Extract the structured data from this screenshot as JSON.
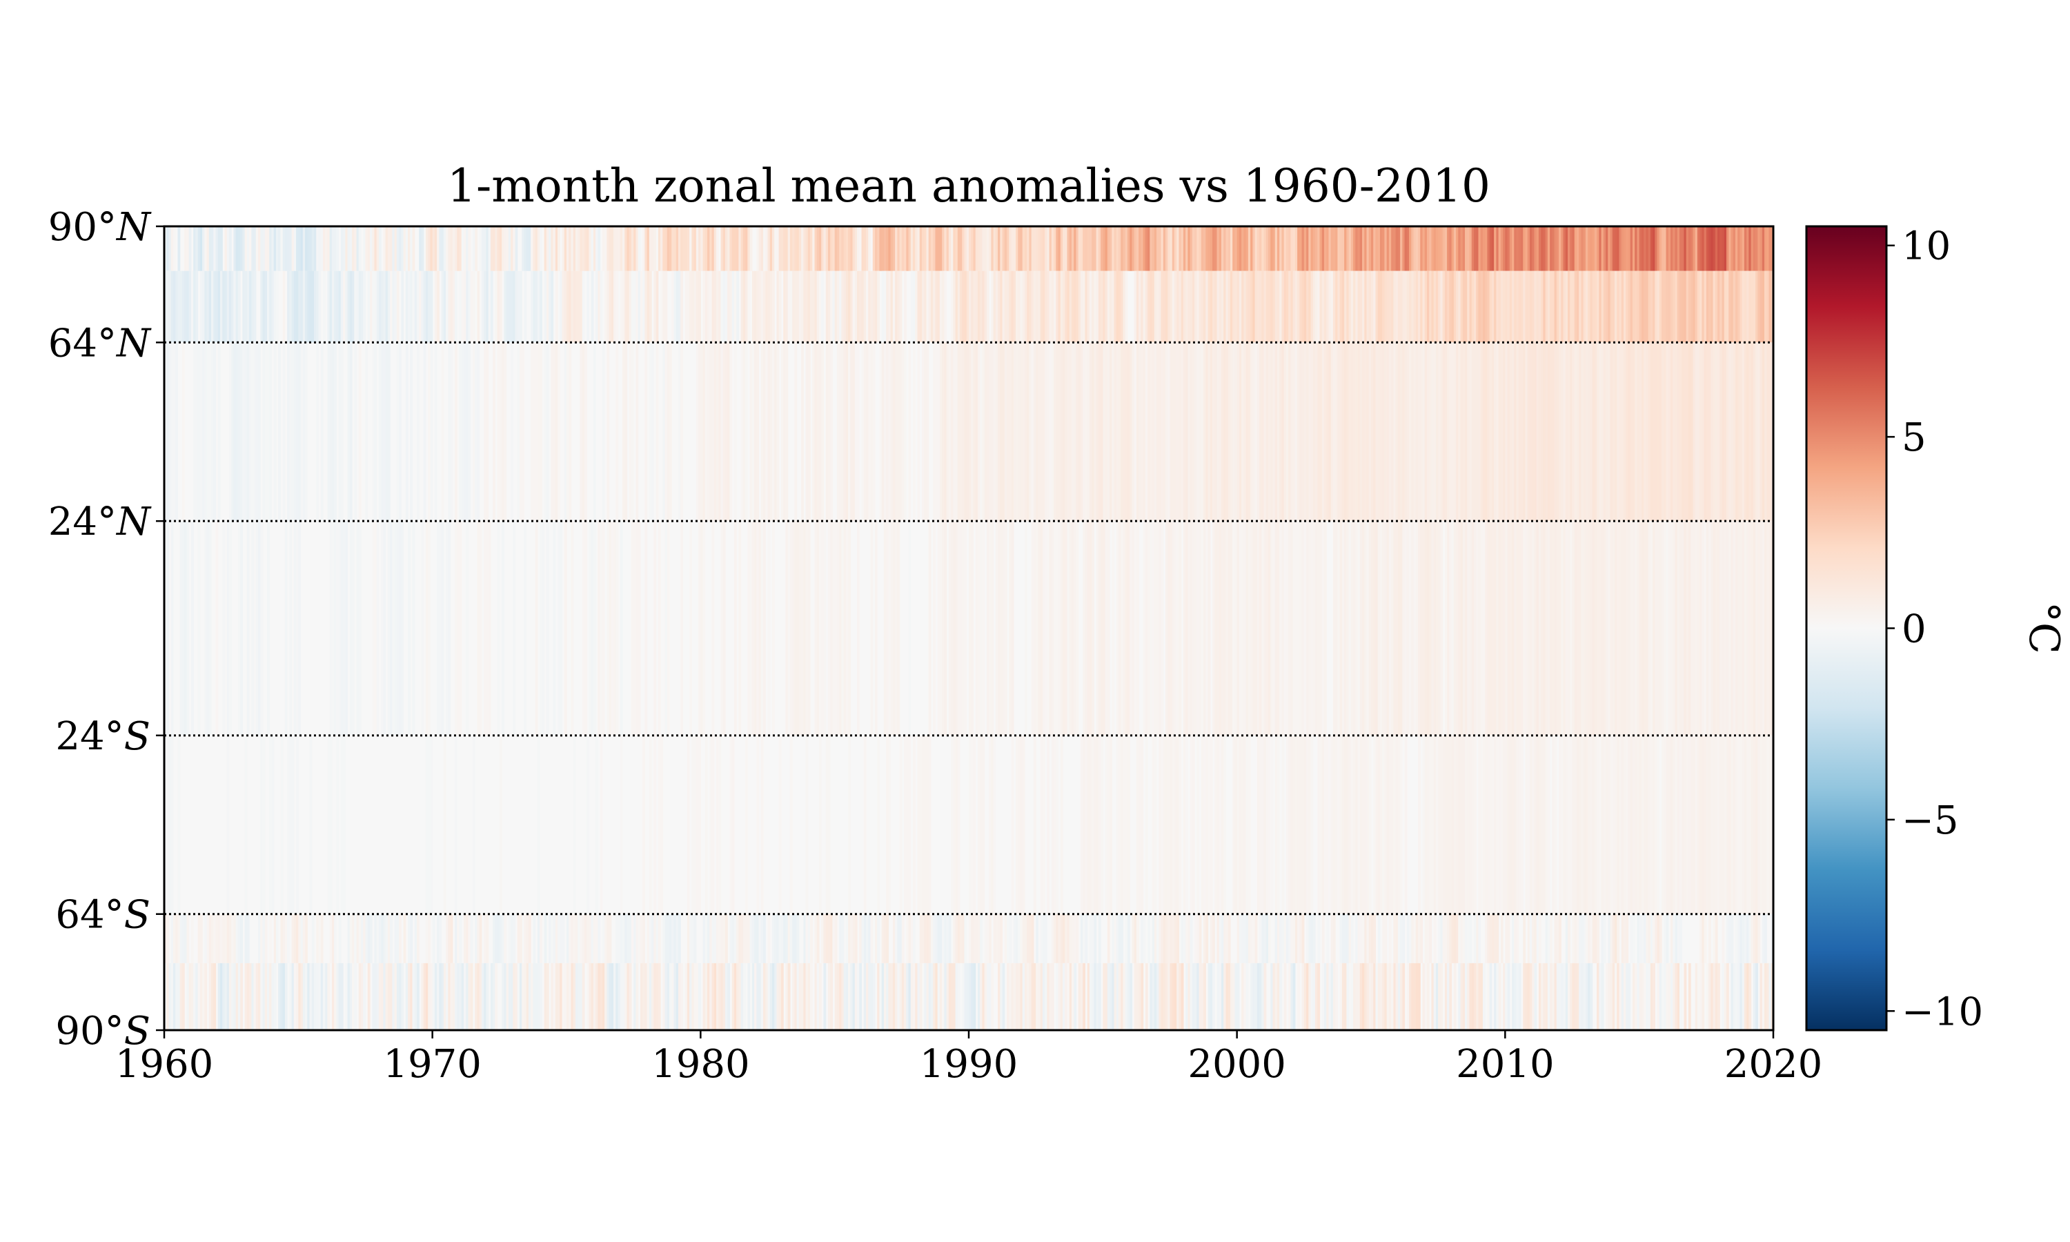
{
  "chart_data": {
    "type": "heatmap",
    "title": "1-month zonal mean anomalies vs 1960-2010",
    "x_ticks": [
      "1960",
      "1970",
      "1980",
      "1990",
      "2000",
      "2010",
      "2020"
    ],
    "x_tick_values": [
      1960,
      1970,
      1980,
      1990,
      2000,
      2010,
      2020
    ],
    "xlim": [
      1960,
      2020
    ],
    "y_ticks": [
      {
        "lat": 90,
        "label": "90°",
        "hemi": "N"
      },
      {
        "lat": 64,
        "label": "64°",
        "hemi": "N"
      },
      {
        "lat": 24,
        "label": "24°",
        "hemi": "N"
      },
      {
        "lat": -24,
        "label": "24°",
        "hemi": "S"
      },
      {
        "lat": -64,
        "label": "64°",
        "hemi": "S"
      },
      {
        "lat": -90,
        "label": "90°",
        "hemi": "S"
      }
    ],
    "ylim": [
      -90,
      90
    ],
    "reference_lines": [
      64,
      24,
      -24,
      -64
    ],
    "colorbar": {
      "label": "°C",
      "range": [
        -10.5,
        10.5
      ],
      "ticks": [
        10,
        5,
        0,
        -5,
        -10
      ],
      "tick_labels": [
        "10",
        "5",
        "0",
        "−5",
        "−10"
      ],
      "colormap": "RdBu_r",
      "colors": [
        "#053061",
        "#2166ac",
        "#4393c3",
        "#92c5de",
        "#d1e5f0",
        "#f7f7f7",
        "#fddbc7",
        "#f4a582",
        "#d6604d",
        "#b2182b",
        "#67001f"
      ]
    },
    "bands": [
      {
        "lat_from": 80,
        "lat_to": 90,
        "anomaly_1960": -1.0,
        "anomaly_2020": 5.5,
        "variability": 2.5
      },
      {
        "lat_from": 64,
        "lat_to": 80,
        "anomaly_1960": -0.8,
        "anomaly_2020": 2.5,
        "variability": 1.5
      },
      {
        "lat_from": 24,
        "lat_to": 64,
        "anomaly_1960": -0.3,
        "anomaly_2020": 1.2,
        "variability": 0.6
      },
      {
        "lat_from": -24,
        "lat_to": 24,
        "anomaly_1960": -0.2,
        "anomaly_2020": 0.6,
        "variability": 0.5
      },
      {
        "lat_from": -64,
        "lat_to": -24,
        "anomaly_1960": -0.1,
        "anomaly_2020": 0.4,
        "variability": 0.3
      },
      {
        "lat_from": -75,
        "lat_to": -64,
        "anomaly_1960": 0.0,
        "anomaly_2020": 0.2,
        "variability": 1.2
      },
      {
        "lat_from": -90,
        "lat_to": -75,
        "anomaly_1960": 0.0,
        "anomaly_2020": 0.3,
        "variability": 2.2
      }
    ]
  }
}
